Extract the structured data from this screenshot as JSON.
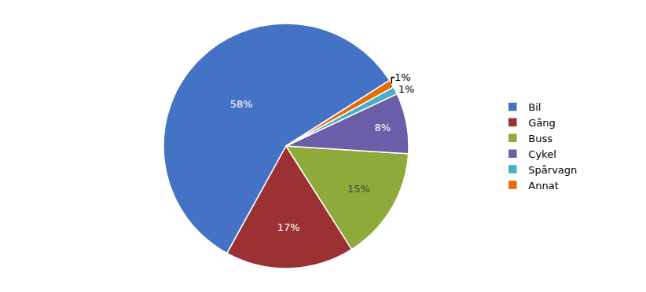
{
  "chart_data": {
    "type": "pie",
    "categories": [
      "Bil",
      "Gång",
      "Buss",
      "Cykel",
      "Spårvagn",
      "Annat"
    ],
    "values": [
      58,
      17,
      15,
      8,
      1,
      1
    ],
    "value_labels": [
      "58%",
      "17%",
      "15%",
      "8%",
      "1%",
      "1%"
    ],
    "colors": [
      "#4472C4",
      "#9B3132",
      "#8EAA3B",
      "#6B5EA8",
      "#4BACC6",
      "#E36C09"
    ],
    "data_labels": true,
    "legend": "right"
  }
}
